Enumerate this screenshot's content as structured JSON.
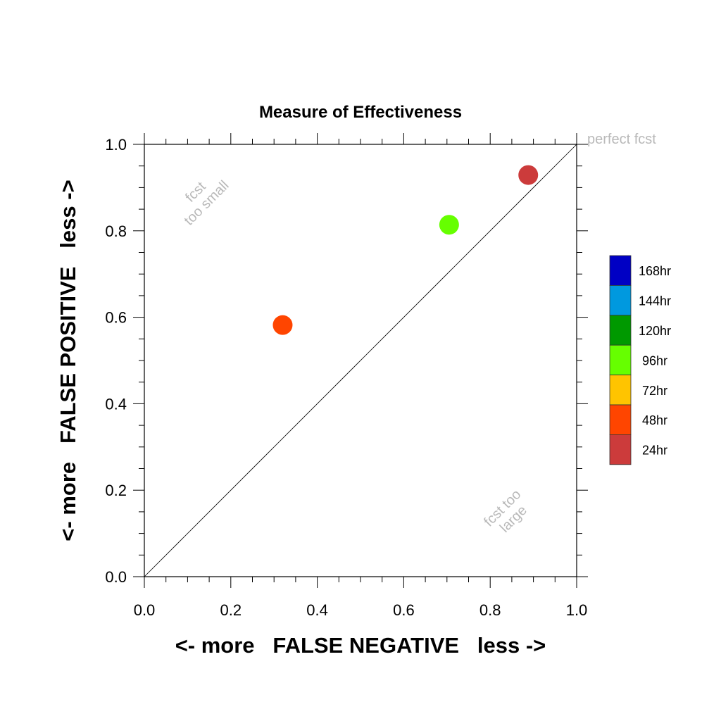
{
  "chart_data": {
    "type": "scatter",
    "title": "Measure of Effectiveness",
    "xlabel": "<- more   FALSE NEGATIVE   less ->",
    "ylabel": "<- more   FALSE POSITIVE   less ->",
    "xlim": [
      0,
      1
    ],
    "ylim": [
      0,
      1
    ],
    "xticks": [
      "0.0",
      "0.2",
      "0.4",
      "0.6",
      "0.8",
      "1.0"
    ],
    "yticks": [
      "0.0",
      "0.2",
      "0.4",
      "0.6",
      "0.8",
      "1.0"
    ],
    "grid": false,
    "diagonal_line": true,
    "annotations": {
      "perfect": "perfect fcst",
      "too_small": [
        "fcst",
        "too small"
      ],
      "too_large": [
        "fcst too",
        "large"
      ]
    },
    "points": [
      {
        "x": 0.32,
        "y": 0.582,
        "color": "#ff4500"
      },
      {
        "x": 0.705,
        "y": 0.814,
        "color": "#66ff00"
      },
      {
        "x": 0.888,
        "y": 0.929,
        "color": "#cc3b3b"
      }
    ],
    "legend": {
      "placement": "right",
      "entries": [
        {
          "label": "168hr",
          "color": "#0000c4"
        },
        {
          "label": "144hr",
          "color": "#0099df"
        },
        {
          "label": "120hr",
          "color": "#009900"
        },
        {
          "label": "96hr",
          "color": "#66ff00"
        },
        {
          "label": "72hr",
          "color": "#ffc400"
        },
        {
          "label": "48hr",
          "color": "#ff4500"
        },
        {
          "label": "24hr",
          "color": "#cc3b3b"
        }
      ]
    }
  }
}
